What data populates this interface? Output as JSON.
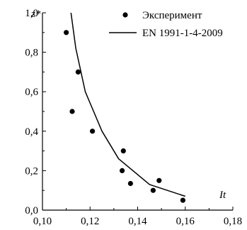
{
  "chart_data": {
    "type": "scatter",
    "title": "",
    "xlabel": "It",
    "ylabel": "z*",
    "xlim": [
      0.1,
      0.18
    ],
    "ylim": [
      0.0,
      1.0
    ],
    "x_ticks": [
      "0,10",
      "0,12",
      "0,14",
      "0,16",
      "0,18"
    ],
    "y_ticks": [
      "0,0",
      "0,2",
      "0,4",
      "0,6",
      "0,8",
      "1,0"
    ],
    "grid": false,
    "legend_position": "top-right",
    "series": [
      {
        "name": "Эксперимент",
        "type": "scatter",
        "color": "#000000",
        "points": [
          {
            "x": 0.11,
            "y": 0.9
          },
          {
            "x": 0.1125,
            "y": 0.5
          },
          {
            "x": 0.115,
            "y": 0.7
          },
          {
            "x": 0.121,
            "y": 0.4
          },
          {
            "x": 0.1335,
            "y": 0.2
          },
          {
            "x": 0.134,
            "y": 0.3
          },
          {
            "x": 0.137,
            "y": 0.135
          },
          {
            "x": 0.1465,
            "y": 0.1
          },
          {
            "x": 0.149,
            "y": 0.15
          },
          {
            "x": 0.159,
            "y": 0.05
          }
        ]
      },
      {
        "name": "EN 1991-1-4-2009",
        "type": "line",
        "color": "#000000",
        "points": [
          {
            "x": 0.112,
            "y": 1.0
          },
          {
            "x": 0.114,
            "y": 0.82
          },
          {
            "x": 0.118,
            "y": 0.6
          },
          {
            "x": 0.125,
            "y": 0.4
          },
          {
            "x": 0.132,
            "y": 0.26
          },
          {
            "x": 0.145,
            "y": 0.13
          },
          {
            "x": 0.16,
            "y": 0.07
          }
        ]
      }
    ]
  }
}
